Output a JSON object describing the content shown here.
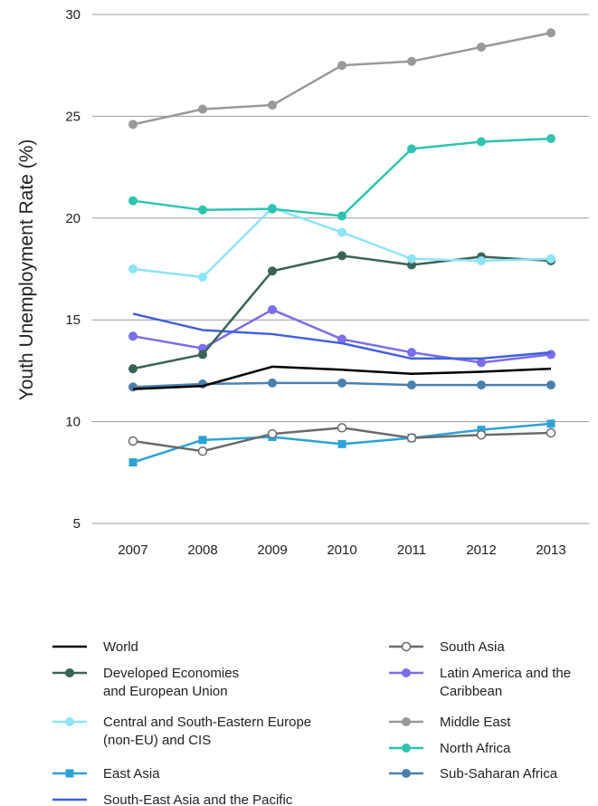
{
  "chart_data": {
    "type": "line",
    "ylabel": "Youth Unemployment Rate (%)",
    "xlabel": "",
    "x": [
      "2007",
      "2008",
      "2009",
      "2010",
      "2011",
      "2012",
      "2013"
    ],
    "ylim": [
      5,
      30
    ],
    "yticks": [
      5,
      10,
      15,
      20,
      25,
      30
    ],
    "grid": "horizontal",
    "legend_position": "bottom",
    "series": [
      {
        "name": "World",
        "color": "#000000",
        "marker": "none",
        "values": [
          11.6,
          11.75,
          12.7,
          12.55,
          12.35,
          12.45,
          12.6
        ]
      },
      {
        "name": "Developed Economies\nand European Union",
        "color": "#3a6358",
        "marker": "circle",
        "values": [
          12.6,
          13.3,
          17.4,
          18.15,
          17.7,
          18.1,
          17.9
        ]
      },
      {
        "name": "Central and South-Eastern Europe\n(non-EU) and CIS",
        "color": "#8ce4f7",
        "marker": "circle",
        "values": [
          17.5,
          17.1,
          20.5,
          19.3,
          18.0,
          17.9,
          18.0
        ]
      },
      {
        "name": "East Asia",
        "color": "#2ba3d6",
        "marker": "square",
        "values": [
          8.0,
          9.1,
          9.25,
          8.9,
          9.2,
          9.6,
          9.9
        ]
      },
      {
        "name": "South-East Asia and the Pacific",
        "color": "#4060e0",
        "marker": "none",
        "values": [
          15.3,
          14.5,
          14.3,
          13.85,
          13.1,
          13.1,
          13.4
        ]
      },
      {
        "name": "South Asia",
        "color": "#6a6a6a",
        "marker": "open-circle",
        "values": [
          9.05,
          8.55,
          9.4,
          9.7,
          9.2,
          9.35,
          9.45
        ]
      },
      {
        "name": "Latin America and the\nCaribbean",
        "color": "#7b6ee8",
        "marker": "circle",
        "values": [
          14.2,
          13.6,
          15.5,
          14.05,
          13.4,
          12.9,
          13.3
        ]
      },
      {
        "name": "Middle East",
        "color": "#999999",
        "marker": "circle",
        "values": [
          24.6,
          25.35,
          25.55,
          27.5,
          27.7,
          28.4,
          29.1
        ]
      },
      {
        "name": "North Africa",
        "color": "#2ec4b0",
        "marker": "circle",
        "values": [
          20.85,
          20.4,
          20.45,
          20.1,
          23.4,
          23.75,
          23.9
        ]
      },
      {
        "name": "Sub-Saharan Africa",
        "color": "#4a80b0",
        "marker": "circle",
        "values": [
          11.7,
          11.85,
          11.9,
          11.9,
          11.8,
          11.8,
          11.8
        ]
      }
    ]
  }
}
